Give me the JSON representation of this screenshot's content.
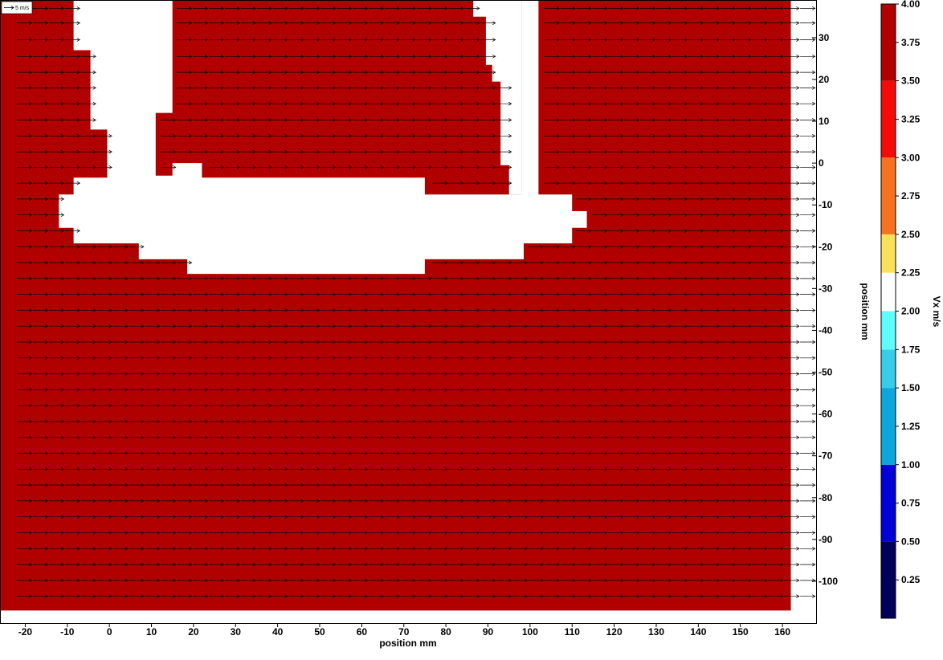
{
  "chart_data": {
    "type": "heatmap",
    "title": "",
    "xlabel": "position mm",
    "ylabel": "position mm",
    "colorbar_label": "Vx m/s",
    "xlim": [
      -26,
      168
    ],
    "ylim": [
      -110,
      39
    ],
    "x_ticks": [
      -20,
      -10,
      0,
      10,
      20,
      30,
      40,
      50,
      60,
      70,
      80,
      90,
      100,
      110,
      120,
      130,
      140,
      150,
      160
    ],
    "y_ticks": [
      30,
      20,
      10,
      0,
      -10,
      -20,
      -30,
      -40,
      -50,
      -60,
      -70,
      -80,
      -90,
      -100
    ],
    "field_color": "#b10000",
    "masked_color": "#ffffff",
    "vector_scale_label": "5 m/s",
    "vector_field": {
      "x_start": -22,
      "x_step": 3.8,
      "x_count": 53,
      "y_values": [
        37,
        33.5,
        29.5,
        25.5,
        21.7,
        18,
        14.2,
        10.3,
        6.5,
        2.7,
        -1,
        -4.8,
        -8.6,
        -12.4,
        -16.2,
        -20,
        -23.8,
        -27.6,
        -31.4,
        -35.2,
        -39,
        -42.8,
        -46.6,
        -50.4,
        -54.2,
        -58,
        -61.8,
        -65.6,
        -69.4,
        -73.2,
        -77,
        -80.8,
        -84.6,
        -88.4,
        -92.2,
        -96,
        -99.8,
        -103.6
      ],
      "u": 3.9,
      "v": 0
    },
    "masked_regions": [
      [
        [
          -8.5,
          39
        ],
        [
          15,
          39
        ],
        [
          15,
          12
        ],
        [
          11,
          12
        ],
        [
          11,
          -3
        ],
        [
          15,
          -3
        ],
        [
          15,
          0
        ],
        [
          22,
          0
        ],
        [
          22,
          -3.5
        ],
        [
          75,
          -3.5
        ],
        [
          75,
          -7.5
        ],
        [
          98,
          -7.5
        ],
        [
          98,
          39
        ],
        [
          102,
          39
        ],
        [
          102,
          -7.5
        ],
        [
          110,
          -7.5
        ],
        [
          110,
          -11.5
        ],
        [
          113.5,
          -11.5
        ],
        [
          113.5,
          -15.5
        ],
        [
          110,
          -15.5
        ],
        [
          110,
          -19.2
        ],
        [
          98.5,
          -19.2
        ],
        [
          98.5,
          -23
        ],
        [
          75,
          -23
        ],
        [
          75,
          -26.5
        ],
        [
          18.5,
          -26.5
        ],
        [
          18.5,
          -23
        ],
        [
          7,
          -23
        ],
        [
          7,
          -19.2
        ],
        [
          -8.5,
          -19.2
        ],
        [
          -8.5,
          -15.5
        ],
        [
          -12,
          -15.5
        ],
        [
          -12,
          -7.5
        ],
        [
          -8.5,
          -7.5
        ],
        [
          -8.5,
          -3.5
        ],
        [
          -0.5,
          -3.5
        ],
        [
          -0.5,
          8
        ],
        [
          -4.5,
          8
        ],
        [
          -4.5,
          27
        ],
        [
          -8.5,
          27
        ]
      ],
      [
        [
          86.5,
          39
        ],
        [
          98,
          39
        ],
        [
          98,
          -7.5
        ],
        [
          95,
          -7.5
        ],
        [
          95,
          -0.5
        ],
        [
          93,
          -0.5
        ],
        [
          93,
          19.5
        ],
        [
          91,
          19.5
        ],
        [
          91,
          23.5
        ],
        [
          89.5,
          23.5
        ],
        [
          89.5,
          35
        ],
        [
          86.5,
          35
        ]
      ]
    ],
    "colorbar": {
      "range": [
        0,
        4
      ],
      "levels": [
        {
          "from": 0,
          "to": 0.5,
          "color": "#00005a"
        },
        {
          "from": 0.5,
          "to": 1,
          "color": "#0000d8"
        },
        {
          "from": 1,
          "to": 1.5,
          "color": "#0ba7dc"
        },
        {
          "from": 1.5,
          "to": 1.75,
          "color": "#35cde8"
        },
        {
          "from": 1.75,
          "to": 2,
          "color": "#5dfbfb"
        },
        {
          "from": 2,
          "to": 2.25,
          "color": "#ffffff"
        },
        {
          "from": 2.25,
          "to": 2.5,
          "color": "#fde05a"
        },
        {
          "from": 2.5,
          "to": 3,
          "color": "#f6721d"
        },
        {
          "from": 3,
          "to": 3.5,
          "color": "#f50a0a"
        },
        {
          "from": 3.5,
          "to": 4,
          "color": "#b10000"
        }
      ],
      "ticks": [
        "4.00",
        "3.75",
        "3.50",
        "3.25",
        "3.00",
        "2.75",
        "2.50",
        "2.25",
        "2.00",
        "1.75",
        "1.50",
        "1.25",
        "1.00",
        "0.75",
        "0.50",
        "0.25"
      ]
    }
  }
}
